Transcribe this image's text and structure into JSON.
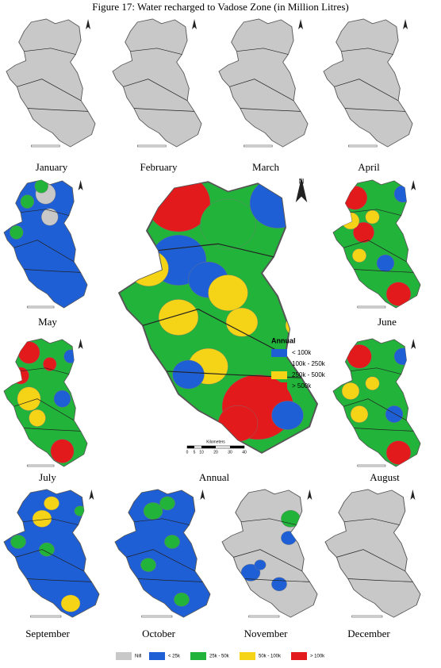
{
  "title": "Figure 17: Water recharged to Vadose Zone (in Million Litres)",
  "maps": [
    {
      "label": "January"
    },
    {
      "label": "February"
    },
    {
      "label": "March"
    },
    {
      "label": "April"
    },
    {
      "label": "May"
    },
    {
      "label": "June"
    },
    {
      "label": "July"
    },
    {
      "label": "August"
    },
    {
      "label": "September"
    },
    {
      "label": "October"
    },
    {
      "label": "November"
    },
    {
      "label": "December"
    }
  ],
  "annual": {
    "label": "Annual",
    "north": "N",
    "legend": {
      "title": "Annual",
      "items": [
        {
          "label": "< 100k",
          "color": "#1f5fd6"
        },
        {
          "label": "100k - 250k",
          "color": "#22b33a"
        },
        {
          "label": "250k - 500k",
          "color": "#f5d316"
        },
        {
          "label": "> 500k",
          "color": "#e31a1c"
        }
      ]
    },
    "scale": {
      "title": "Kilometers",
      "ticks": [
        "0",
        "5",
        "10",
        "20",
        "30",
        "40"
      ]
    }
  },
  "legend": [
    {
      "label": "Nill",
      "color": "#c8c8c8"
    },
    {
      "label": "< 25k",
      "color": "#1f5fd6"
    },
    {
      "label": "25k - 50k",
      "color": "#22b33a"
    },
    {
      "label": "50k - 100k",
      "color": "#f5d316"
    },
    {
      "label": "> 100k",
      "color": "#e31a1c"
    }
  ]
}
